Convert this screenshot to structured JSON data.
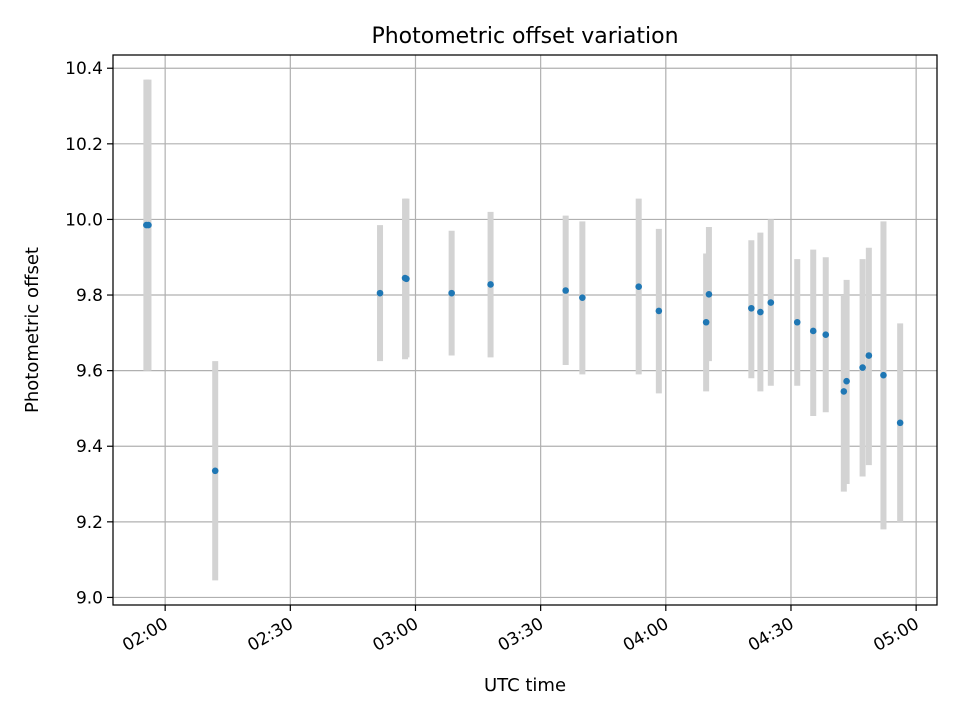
{
  "chart_data": {
    "type": "scatter",
    "title": "Photometric offset variation",
    "xlabel": "UTC time",
    "ylabel": "Photometric offset",
    "x_ticks": [
      "02:00",
      "02:30",
      "03:00",
      "03:30",
      "04:00",
      "04:30",
      "05:00"
    ],
    "y_ticks": [
      "9.0",
      "9.2",
      "9.4",
      "9.6",
      "9.8",
      "10.0",
      "10.2",
      "10.4"
    ],
    "xlim": [
      "01:47:30",
      "05:05:00"
    ],
    "ylim": [
      8.98,
      10.435
    ],
    "grid": true,
    "legend": "none",
    "colors": {
      "point": "#1f77b4",
      "errorbar": "#d3d3d3",
      "grid": "#b0b0b0"
    },
    "points": [
      {
        "time": "01:55:30",
        "value": 9.985,
        "low": 9.6,
        "high": 10.37
      },
      {
        "time": "01:56:00",
        "value": 9.985,
        "low": 9.6,
        "high": 10.37
      },
      {
        "time": "02:12:00",
        "value": 9.335,
        "low": 9.045,
        "high": 9.625
      },
      {
        "time": "02:51:30",
        "value": 9.805,
        "low": 9.625,
        "high": 9.985
      },
      {
        "time": "02:57:30",
        "value": 9.845,
        "low": 9.63,
        "high": 10.055
      },
      {
        "time": "02:57:50",
        "value": 9.843,
        "low": 9.635,
        "high": 10.055
      },
      {
        "time": "03:08:40",
        "value": 9.805,
        "low": 9.64,
        "high": 9.97
      },
      {
        "time": "03:18:00",
        "value": 9.828,
        "low": 9.635,
        "high": 10.02
      },
      {
        "time": "03:36:00",
        "value": 9.812,
        "low": 9.615,
        "high": 10.01
      },
      {
        "time": "03:40:00",
        "value": 9.793,
        "low": 9.59,
        "high": 9.995
      },
      {
        "time": "03:53:30",
        "value": 9.822,
        "low": 9.59,
        "high": 10.055
      },
      {
        "time": "03:58:20",
        "value": 9.758,
        "low": 9.54,
        "high": 9.975
      },
      {
        "time": "04:09:40",
        "value": 9.728,
        "low": 9.545,
        "high": 9.91
      },
      {
        "time": "04:10:20",
        "value": 9.802,
        "low": 9.625,
        "high": 9.98
      },
      {
        "time": "04:20:30",
        "value": 9.765,
        "low": 9.58,
        "high": 9.945
      },
      {
        "time": "04:22:40",
        "value": 9.755,
        "low": 9.545,
        "high": 9.965
      },
      {
        "time": "04:25:10",
        "value": 9.78,
        "low": 9.56,
        "high": 10.0
      },
      {
        "time": "04:31:30",
        "value": 9.728,
        "low": 9.56,
        "high": 9.895
      },
      {
        "time": "04:35:20",
        "value": 9.705,
        "low": 9.48,
        "high": 9.92
      },
      {
        "time": "04:38:20",
        "value": 9.695,
        "low": 9.49,
        "high": 9.9
      },
      {
        "time": "04:42:40",
        "value": 9.545,
        "low": 9.28,
        "high": 9.8
      },
      {
        "time": "04:43:20",
        "value": 9.572,
        "low": 9.3,
        "high": 9.84
      },
      {
        "time": "04:47:10",
        "value": 9.608,
        "low": 9.32,
        "high": 9.895
      },
      {
        "time": "04:48:40",
        "value": 9.64,
        "low": 9.35,
        "high": 9.925
      },
      {
        "time": "04:52:10",
        "value": 9.588,
        "low": 9.18,
        "high": 9.995
      },
      {
        "time": "04:56:10",
        "value": 9.462,
        "low": 9.2,
        "high": 9.725
      }
    ]
  }
}
